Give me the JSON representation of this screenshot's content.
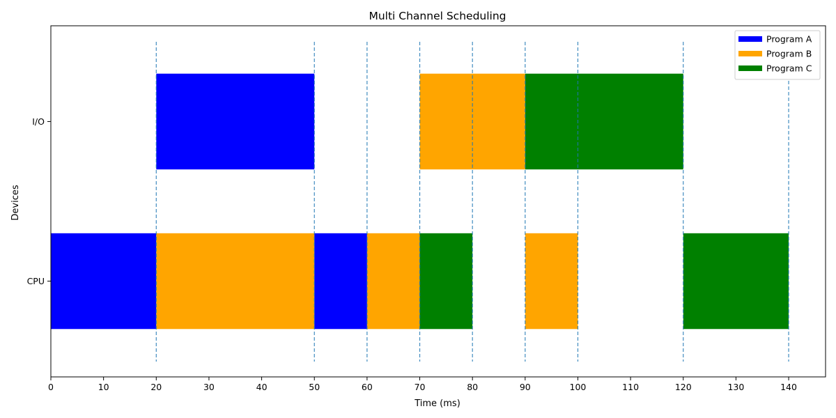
{
  "chart_data": {
    "type": "gantt",
    "title": "Multi Channel Scheduling",
    "xlabel": "Time (ms)",
    "ylabel": "Devices",
    "xlim": [
      0,
      147
    ],
    "xticks": [
      0,
      10,
      20,
      30,
      40,
      50,
      60,
      70,
      80,
      90,
      100,
      110,
      120,
      130,
      140
    ],
    "devices": [
      "CPU",
      "I/O"
    ],
    "programs": [
      {
        "name": "Program A",
        "color": "#0000ff"
      },
      {
        "name": "Program B",
        "color": "#ffa500"
      },
      {
        "name": "Program C",
        "color": "#008000"
      }
    ],
    "tasks": [
      {
        "device": "CPU",
        "program": "Program A",
        "start": 0,
        "end": 20
      },
      {
        "device": "CPU",
        "program": "Program B",
        "start": 20,
        "end": 50
      },
      {
        "device": "CPU",
        "program": "Program A",
        "start": 50,
        "end": 60
      },
      {
        "device": "CPU",
        "program": "Program B",
        "start": 60,
        "end": 70
      },
      {
        "device": "CPU",
        "program": "Program C",
        "start": 70,
        "end": 80
      },
      {
        "device": "CPU",
        "program": "Program B",
        "start": 90,
        "end": 100
      },
      {
        "device": "CPU",
        "program": "Program C",
        "start": 120,
        "end": 140
      },
      {
        "device": "I/O",
        "program": "Program A",
        "start": 20,
        "end": 50
      },
      {
        "device": "I/O",
        "program": "Program B",
        "start": 70,
        "end": 90
      },
      {
        "device": "I/O",
        "program": "Program C",
        "start": 90,
        "end": 120
      }
    ],
    "reference_lines": [
      20,
      50,
      60,
      70,
      80,
      90,
      100,
      120,
      140
    ],
    "legend_position": "top-right",
    "grid": false
  }
}
